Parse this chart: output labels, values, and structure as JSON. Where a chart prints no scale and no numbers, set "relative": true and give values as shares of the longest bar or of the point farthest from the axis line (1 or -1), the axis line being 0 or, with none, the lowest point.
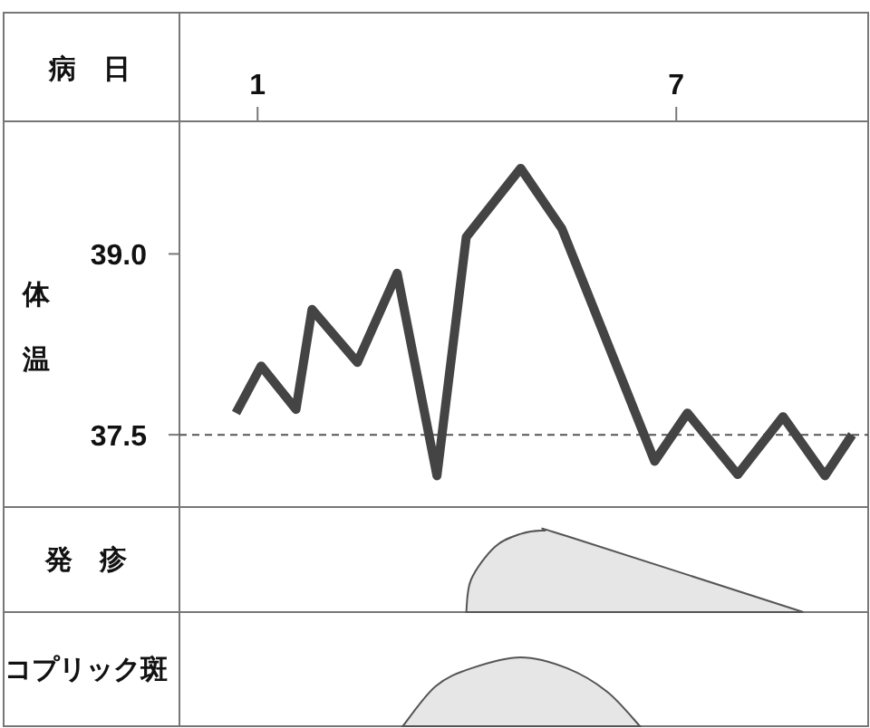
{
  "chart_data": [
    {
      "type": "line",
      "xlabel": "病日",
      "ylabel": "体温",
      "xlim": [
        -0.12,
        9.75
      ],
      "xticks": [
        1,
        7
      ],
      "ylim": [
        36.9,
        40.1
      ],
      "yticks": [
        37.5,
        {
          "value": 39,
          "label": "39.0"
        }
      ],
      "x": [
        0.69,
        1.05,
        1.55,
        1.78,
        2.43,
        3.0,
        3.57,
        3.99,
        4.77,
        5.36,
        6.69,
        7.16,
        7.88,
        8.53,
        9.13,
        9.52
      ],
      "series": [
        {
          "color": "#444444",
          "values": [
            37.68,
            38.07,
            37.71,
            38.54,
            38.1,
            38.84,
            37.16,
            39.14,
            39.71,
            39.21,
            37.28,
            37.68,
            37.17,
            37.65,
            37.16,
            37.5
          ]
        }
      ],
      "ref_lines": [
        {
          "axis": "y",
          "value": 37.5,
          "line_style": "dashed",
          "color": "#555555"
        }
      ]
    },
    {
      "type": "area",
      "ylabel": "発疹",
      "relative": true,
      "xlim": [
        -0.12,
        9.75
      ],
      "x": [
        3.99,
        4.06,
        4.4,
        4.77,
        5.1,
        5.44,
        8.82
      ],
      "series": [
        {
          "color": "#e6e6e6",
          "values": [
            0,
            0.4,
            0.8,
            0.96,
            1,
            0.93,
            0
          ]
        }
      ]
    },
    {
      "type": "area",
      "ylabel": "コプリック斑",
      "relative": true,
      "xlim": [
        -0.12,
        9.75
      ],
      "x": [
        3.08,
        3.55,
        4.06,
        4.77,
        5.44,
        6.01,
        6.48
      ],
      "series": [
        {
          "color": "#e6e6e6",
          "values": [
            0,
            0.58,
            0.84,
            1,
            0.84,
            0.5,
            0
          ]
        }
      ]
    }
  ]
}
